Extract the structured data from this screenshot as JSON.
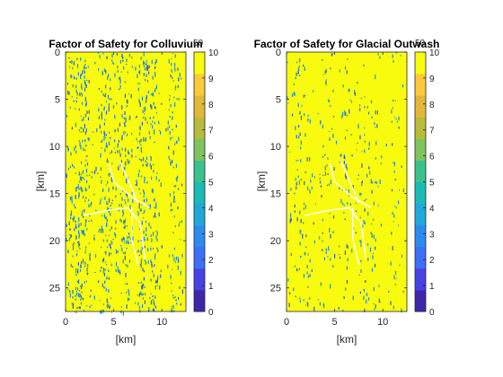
{
  "colors": {
    "high": "#f9fb0e",
    "speckle": "#1f8fd0",
    "speckle_dark": "#2d5ec9",
    "road": "#ffffff",
    "colormap": [
      "#3e26a8",
      "#4741e6",
      "#3c6ef7",
      "#2b8cf0",
      "#1fa9d9",
      "#19bcb4",
      "#3ac28d",
      "#7fc45e",
      "#b7bd3a",
      "#e3b839",
      "#fcc93a",
      "#f9fb0e"
    ]
  },
  "chart_data": [
    {
      "type": "heatmap",
      "title": "Factor of Safety for Colluvium",
      "xlabel": "[km]",
      "ylabel": "[km]",
      "xlim": [
        0,
        12.5
      ],
      "ylim": [
        0,
        27.5
      ],
      "y_reversed": true,
      "x_ticks": [
        "0",
        "5",
        "10"
      ],
      "y_ticks": [
        "0",
        "5",
        "10",
        "15",
        "20",
        "25"
      ],
      "clim": [
        0,
        10
      ],
      "colorbar_ticks": [
        "0",
        "1",
        "2",
        "3",
        "4",
        "5",
        "6",
        "7",
        "8",
        "9",
        "10"
      ],
      "colorbar_exponent_label": "50",
      "speckle_density": 0.55
    },
    {
      "type": "heatmap",
      "title": "Factor of Safety for Glacial Outwash",
      "xlabel": "[km]",
      "ylabel": "[km]",
      "xlim": [
        0,
        12.5
      ],
      "ylim": [
        0,
        27.5
      ],
      "y_reversed": true,
      "x_ticks": [
        "0",
        "5",
        "10"
      ],
      "y_ticks": [
        "0",
        "5",
        "10",
        "15",
        "20",
        "25"
      ],
      "clim": [
        0,
        10
      ],
      "colorbar_ticks": [
        "0",
        "1",
        "2",
        "3",
        "4",
        "5",
        "6",
        "7",
        "8",
        "9",
        "10"
      ],
      "colorbar_exponent_label": "50",
      "speckle_density": 0.22
    }
  ]
}
